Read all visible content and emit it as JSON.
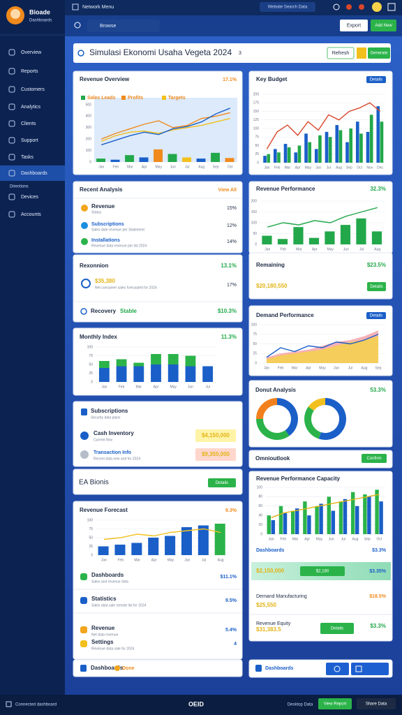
{
  "sidebar": {
    "brand": "Bioade",
    "subtitle": "Dashboards",
    "nav": [
      "Overview",
      "Reports",
      "Customers",
      "Analytics",
      "Clients",
      "Support",
      "Tasks",
      "Dashboards",
      "Directions",
      "Devices",
      "Accounts"
    ]
  },
  "topbar": {
    "menu": "Network Menu",
    "search_tab": "Website Search Data",
    "search": "Browse",
    "buttons": [
      "Export",
      "Add New"
    ]
  },
  "header": {
    "title": "Simulasi Ekonomi Usaha Vegeta 2024",
    "badge": "3",
    "buttons": [
      "Refresh",
      "Generate"
    ]
  },
  "charts": [
    {
      "type": "combo",
      "title": "Revenue Overview",
      "badge": "17.1%",
      "plot_fill": "#dceafc",
      "categories": [
        "Jan",
        "Feb",
        "Mar",
        "Apr",
        "May",
        "Jun",
        "Jul",
        "Aug",
        "Sep",
        "Oct"
      ],
      "ylim": [
        0,
        500
      ],
      "yticks": [
        0,
        100,
        200,
        300,
        400,
        500
      ],
      "series": [
        {
          "name": "Sales Leads",
          "color": "#22a84a",
          "kind": "bar",
          "values": [
            30,
            20,
            60,
            40,
            110,
            70,
            40,
            30,
            80,
            35
          ],
          "colors": [
            "#22a84a",
            "#1a5fc8",
            "#22a84a",
            "#1a5fc8",
            "#f08a1c",
            "#22a84a",
            "#f2c01d",
            "#1a5fc8",
            "#22a84a",
            "#f08a1c"
          ]
        },
        {
          "name": "Profits",
          "color": "#f08a1c",
          "kind": "line",
          "values": [
            200,
            250,
            290,
            330,
            360,
            300,
            320,
            380,
            400,
            430
          ]
        },
        {
          "name": "Targets",
          "color": "#f2c01d",
          "kind": "line",
          "values": [
            180,
            230,
            260,
            270,
            250,
            280,
            300,
            320,
            350,
            380
          ]
        },
        {
          "color": "#1a5fc8",
          "kind": "line",
          "values": [
            150,
            190,
            230,
            260,
            240,
            290,
            310,
            350,
            420,
            470
          ]
        }
      ]
    },
    {
      "type": "combo",
      "title": "Key Budget",
      "button": "Details",
      "categories": [
        "Jan",
        "Feb",
        "Mar",
        "Apr",
        "May",
        "Jun",
        "Jul",
        "Aug",
        "Sep",
        "Oct",
        "Nov",
        "Dec"
      ],
      "ylim": [
        0,
        200
      ],
      "yticks": [
        0,
        25,
        50,
        75,
        100,
        125,
        150,
        175,
        200
      ],
      "series": [
        {
          "color": "#1a5fc8",
          "kind": "bar",
          "values": [
            20,
            40,
            55,
            30,
            85,
            40,
            90,
            110,
            60,
            120,
            90,
            165
          ]
        },
        {
          "color": "#22a84a",
          "kind": "bar",
          "values": [
            25,
            30,
            45,
            50,
            60,
            80,
            75,
            95,
            100,
            85,
            140,
            120
          ]
        },
        {
          "color": "#d9472b",
          "kind": "line",
          "values": [
            40,
            90,
            110,
            80,
            120,
            95,
            140,
            125,
            150,
            160,
            175,
            150
          ]
        }
      ]
    },
    {
      "type": "combo",
      "title": "Revenue Performance",
      "badge": "32.3%",
      "categories": [
        "Jan",
        "Feb",
        "Mar",
        "Apr",
        "May",
        "Jun",
        "Jul",
        "Aug"
      ],
      "ylim": [
        0,
        200
      ],
      "yticks": [
        0,
        50,
        100,
        150,
        200
      ],
      "series": [
        {
          "color": "#22a84a",
          "kind": "bar",
          "values": [
            40,
            25,
            80,
            30,
            60,
            90,
            120,
            60
          ]
        },
        {
          "color": "#22a84a",
          "kind": "line",
          "values": [
            80,
            100,
            90,
            110,
            100,
            130,
            150,
            170
          ]
        }
      ]
    },
    {
      "type": "combo",
      "title": "Monthly Index",
      "badge": "11.3%",
      "stacked": true,
      "categories": [
        "Jan",
        "Feb",
        "Mar",
        "Apr",
        "May",
        "Jun",
        "Jul"
      ],
      "ylim": [
        0,
        100
      ],
      "yticks": [
        0,
        25,
        50,
        75,
        100
      ],
      "series": [
        {
          "color": "#1a5fc8",
          "kind": "bar",
          "values": [
            40,
            45,
            45,
            50,
            50,
            45,
            45
          ]
        },
        {
          "color": "#2bb34a",
          "kind": "bar",
          "values": [
            20,
            20,
            10,
            30,
            30,
            30,
            0
          ]
        }
      ]
    },
    {
      "type": "combo",
      "title": "Demand Performance",
      "button": "Details",
      "categories": [
        "Jan",
        "Feb",
        "Mar",
        "Apr",
        "May",
        "Jun",
        "Jul",
        "Aug",
        "Sep"
      ],
      "ylim": [
        0,
        100
      ],
      "yticks": [
        0,
        25,
        50,
        75,
        100
      ],
      "series": [
        {
          "color": "#f4a3a8",
          "kind": "area",
          "values": [
            15,
            25,
            30,
            35,
            45,
            55,
            60,
            70,
            85
          ]
        },
        {
          "color": "#f5d24a",
          "kind": "area",
          "values": [
            10,
            20,
            25,
            30,
            35,
            45,
            55,
            60,
            70
          ]
        },
        {
          "color": "#1a5fc8",
          "kind": "line",
          "values": [
            15,
            40,
            30,
            45,
            40,
            55,
            50,
            60,
            75
          ]
        }
      ]
    },
    {
      "type": "donut",
      "title": "Donut Analysis",
      "badge": "53.3%",
      "series": [
        {
          "values": [
            40,
            35,
            25
          ],
          "colors": [
            "#1a5fc8",
            "#2bb34a",
            "#f2811d"
          ]
        },
        {
          "values": [
            55,
            30,
            15
          ],
          "colors": [
            "#1a5fc8",
            "#2bb34a",
            "#f2c01d"
          ]
        }
      ]
    },
    {
      "type": "combo",
      "title": "Revenue Forecast",
      "badge": "9.3%",
      "categories": [
        "Jan",
        "Feb",
        "Mar",
        "Apr",
        "May",
        "Jun",
        "Jul",
        "Aug"
      ],
      "ylim": [
        0,
        100
      ],
      "yticks": [
        0,
        25,
        50,
        75,
        100
      ],
      "series": [
        {
          "color": "#1a5fc8",
          "kind": "bar",
          "values": [
            25,
            30,
            35,
            50,
            55,
            80,
            85,
            90
          ],
          "colors": [
            "#1a5fc8",
            "#1a5fc8",
            "#1a5fc8",
            "#1a5fc8",
            "#1a5fc8",
            "#1a5fc8",
            "#1a5fc8",
            "#2bb34a"
          ]
        },
        {
          "color": "#f2c01d",
          "kind": "line",
          "values": [
            45,
            50,
            60,
            55,
            65,
            70,
            75,
            65
          ]
        }
      ]
    },
    {
      "type": "combo",
      "title": "Revenue Performance Capacity",
      "categories": [
        "Jan",
        "Feb",
        "Mar",
        "Apr",
        "May",
        "Jun",
        "Jul",
        "Aug",
        "Sep",
        "Oct"
      ],
      "ylim": [
        0,
        100
      ],
      "yticks": [
        0,
        20,
        40,
        60,
        80,
        100
      ],
      "series": [
        {
          "color": "#2bb34a",
          "kind": "bar",
          "values": [
            40,
            60,
            50,
            70,
            60,
            80,
            70,
            90,
            85,
            95
          ]
        },
        {
          "color": "#1a5fc8",
          "kind": "bar",
          "values": [
            30,
            45,
            55,
            40,
            65,
            50,
            75,
            60,
            80,
            70
          ]
        },
        {
          "color": "#e2b414",
          "kind": "line",
          "values": [
            35,
            45,
            50,
            55,
            60,
            65,
            70,
            75,
            80,
            85
          ]
        }
      ]
    }
  ],
  "activity": {
    "title": "Recent Analysis",
    "action": "View All",
    "items": [
      {
        "name": "Revenue",
        "note": "Status",
        "value": "15%"
      },
      {
        "name": "Subscriptions",
        "note": "Sales date revenue per Statement",
        "value": "12%"
      },
      {
        "name": "Installations",
        "note": "Revenue data revenue per list 2024",
        "value": "14%"
      }
    ]
  },
  "recovery": {
    "title": "Rexonnion",
    "value": "13.1%",
    "amount": "$35,380",
    "note": "Net consumer sales forecasted for 2024",
    "item_value": "17%",
    "footer": "Recovery",
    "footer_tag": "Stable",
    "footer_value": "$10.3%"
  },
  "contacts": {
    "title": "Subscriptions",
    "note": "Security data plans",
    "items": [
      {
        "name": "Cash Inventory",
        "note": "Current flow",
        "tag": "$4,150,000"
      },
      {
        "name": "Transaction Info",
        "note": "Recent data new and for 2024",
        "tag": "$9,350,000"
      }
    ]
  },
  "eab": {
    "title": "EA Bionis",
    "button": "Details"
  },
  "left_bottom": {
    "items": [
      {
        "name": "Dashboards",
        "note": "Sales and revenue data",
        "value": "$11.1%"
      },
      {
        "name": "Statistics",
        "note": "Sales data sale remote list for 2024",
        "value": "9.5%"
      },
      {
        "name": "Revenue",
        "note": "Net data revenue",
        "value": "5.4%"
      },
      {
        "name": "Settings",
        "note": "Revenue data sale for 2024",
        "value": "4"
      }
    ],
    "footer": "Dashboards",
    "footer_tag": "Done"
  },
  "right_stats": {
    "title": "Remaining",
    "value": "$23.5%",
    "subtitle": "$20,180,550",
    "button": "Details"
  },
  "online": {
    "title": "Omnioutlook",
    "button": "Confirm"
  },
  "right_bottom": {
    "row1": {
      "label": "Dashboards",
      "value": "$3.3%"
    },
    "highlight": {
      "label": "$2,150,000",
      "button": "$2,180",
      "value": "$3.35%"
    },
    "row2": {
      "label": "Demand Manufacturing",
      "sub": "$25,550",
      "value": "$18.5%"
    },
    "row3": {
      "label": "Revenue Equity",
      "sub": "$31,383.5",
      "button": "Details",
      "value": "$3.3%"
    },
    "bar": "Dashboards"
  },
  "footer": {
    "left": "Connected dashboard",
    "logo": "OEID",
    "right": "Desktop Data",
    "buttons": [
      "View Report",
      "Share Data"
    ]
  }
}
